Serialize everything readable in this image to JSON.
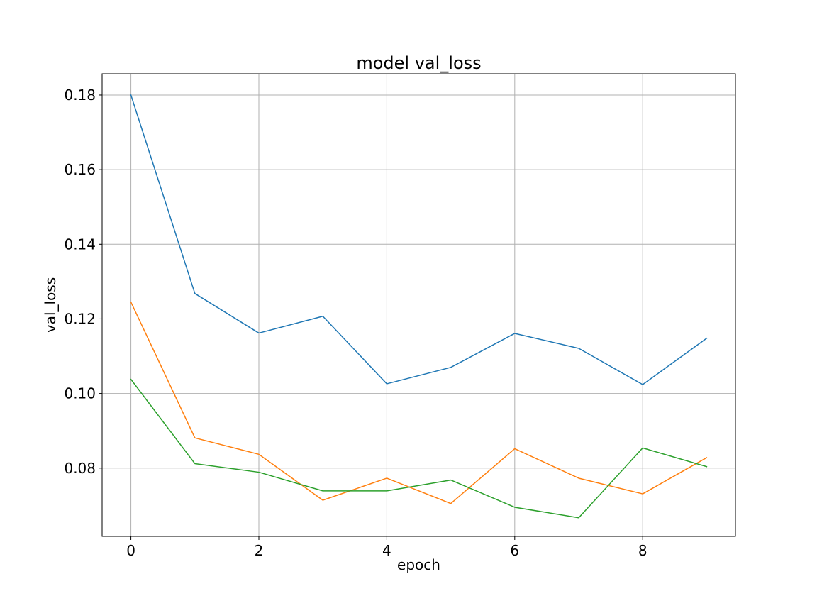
{
  "chart_data": {
    "type": "line",
    "title": "model val_loss",
    "xlabel": "epoch",
    "ylabel": "val_loss",
    "xlim": [
      -0.45,
      9.45
    ],
    "ylim": [
      0.0617,
      0.1857
    ],
    "xticks": [
      0,
      2,
      4,
      6,
      8
    ],
    "xtick_labels": [
      "0",
      "2",
      "4",
      "6",
      "8"
    ],
    "yticks": [
      0.08,
      0.1,
      0.12,
      0.14,
      0.16,
      0.18
    ],
    "ytick_labels": [
      "0.08",
      "0.10",
      "0.12",
      "0.14",
      "0.16",
      "0.18"
    ],
    "grid": true,
    "legend": false,
    "x": [
      0,
      1,
      2,
      3,
      4,
      5,
      6,
      7,
      8,
      9
    ],
    "series": [
      {
        "color": "#1f77b4",
        "values": [
          0.18,
          0.1268,
          0.1162,
          0.1207,
          0.1026,
          0.107,
          0.1161,
          0.1121,
          0.1024,
          0.1148
        ]
      },
      {
        "color": "#ff7f0e",
        "values": [
          0.1245,
          0.0881,
          0.0837,
          0.0714,
          0.0773,
          0.0705,
          0.0852,
          0.0773,
          0.0731,
          0.0828
        ]
      },
      {
        "color": "#2ca02c",
        "values": [
          0.1038,
          0.0812,
          0.0789,
          0.0739,
          0.0739,
          0.0768,
          0.0695,
          0.0667,
          0.0854,
          0.0804
        ]
      }
    ]
  }
}
